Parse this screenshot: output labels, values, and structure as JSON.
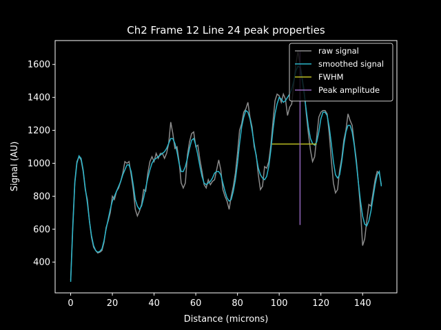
{
  "chart_data": {
    "type": "line",
    "title": "Ch2 Frame 12 Line 24 peak properties",
    "xlabel": "Distance (microns)",
    "ylabel": "Signal (AU)",
    "xlim": [
      -7.45,
      156.45
    ],
    "ylim": [
      213,
      1745
    ],
    "xticks": [
      0,
      20,
      40,
      60,
      80,
      100,
      120,
      140
    ],
    "yticks": [
      400,
      600,
      800,
      1000,
      1200,
      1400,
      1600
    ],
    "legend": "upper right",
    "x": [
      0,
      1,
      2,
      3,
      4,
      5,
      6,
      7,
      8,
      9,
      10,
      11,
      12,
      13,
      14,
      15,
      16,
      17,
      18,
      19,
      20,
      21,
      22,
      23,
      24,
      25,
      26,
      27,
      28,
      29,
      30,
      31,
      32,
      33,
      34,
      35,
      36,
      37,
      38,
      39,
      40,
      41,
      42,
      43,
      44,
      45,
      46,
      47,
      48,
      49,
      50,
      51,
      52,
      53,
      54,
      55,
      56,
      57,
      58,
      59,
      60,
      61,
      62,
      63,
      64,
      65,
      66,
      67,
      68,
      69,
      70,
      71,
      72,
      73,
      74,
      75,
      76,
      77,
      78,
      79,
      80,
      81,
      82,
      83,
      84,
      85,
      86,
      87,
      88,
      89,
      90,
      91,
      92,
      93,
      94,
      95,
      96,
      97,
      98,
      99,
      100,
      101,
      102,
      103,
      104,
      105,
      106,
      107,
      108,
      109,
      110,
      111,
      112,
      113,
      114,
      115,
      116,
      117,
      118,
      119,
      120,
      121,
      122,
      123,
      124,
      125,
      126,
      127,
      128,
      129,
      130,
      131,
      132,
      133,
      134,
      135,
      136,
      137,
      138,
      139,
      140,
      141,
      142,
      143,
      144,
      145,
      146,
      147,
      148,
      149
    ],
    "series": [
      {
        "name": "raw signal",
        "color": "#8c8c8c",
        "values": [
          290,
          620,
          890,
          1010,
          1040,
          1020,
          950,
          840,
          780,
          650,
          550,
          490,
          470,
          455,
          460,
          470,
          520,
          610,
          650,
          700,
          800,
          780,
          830,
          850,
          890,
          940,
          1010,
          1000,
          1010,
          930,
          840,
          720,
          680,
          710,
          750,
          840,
          830,
          940,
          1010,
          1040,
          1010,
          1060,
          1030,
          1060,
          1060,
          1030,
          1060,
          1120,
          1250,
          1180,
          1090,
          1100,
          1010,
          880,
          850,
          880,
          1050,
          1130,
          1180,
          1190,
          1100,
          1110,
          1020,
          950,
          870,
          850,
          900,
          870,
          890,
          900,
          960,
          1020,
          960,
          840,
          800,
          770,
          720,
          800,
          860,
          940,
          1060,
          1200,
          1240,
          1310,
          1330,
          1370,
          1280,
          1220,
          1100,
          1050,
          930,
          840,
          860,
          980,
          970,
          1010,
          1110,
          1250,
          1380,
          1420,
          1410,
          1370,
          1420,
          1390,
          1290,
          1340,
          1360,
          1480,
          1600,
          1680,
          1600,
          1520,
          1440,
          1300,
          1180,
          1080,
          1010,
          1040,
          1160,
          1280,
          1310,
          1320,
          1320,
          1300,
          1180,
          1020,
          880,
          820,
          840,
          960,
          1030,
          1140,
          1200,
          1300,
          1260,
          1230,
          1120,
          1020,
          880,
          720,
          500,
          540,
          650,
          750,
          740,
          820,
          900,
          950,
          940,
          870
        ]
      },
      {
        "name": "smoothed signal",
        "color": "#2bb7cc",
        "values": [
          280,
          600,
          880,
          1000,
          1045,
          1030,
          960,
          850,
          760,
          650,
          560,
          500,
          470,
          460,
          465,
          480,
          530,
          600,
          660,
          720,
          770,
          800,
          830,
          860,
          890,
          930,
          960,
          990,
          990,
          950,
          870,
          780,
          740,
          720,
          740,
          790,
          850,
          910,
          960,
          1000,
          1020,
          1030,
          1040,
          1050,
          1060,
          1070,
          1090,
          1120,
          1150,
          1150,
          1120,
          1070,
          1000,
          950,
          950,
          980,
          1030,
          1090,
          1140,
          1150,
          1110,
          1050,
          980,
          920,
          880,
          870,
          880,
          890,
          910,
          940,
          950,
          950,
          930,
          880,
          830,
          790,
          770,
          780,
          830,
          900,
          1000,
          1120,
          1220,
          1280,
          1320,
          1310,
          1270,
          1200,
          1120,
          1040,
          970,
          930,
          910,
          900,
          920,
          980,
          1080,
          1200,
          1300,
          1360,
          1400,
          1390,
          1370,
          1380,
          1400,
          1420,
          1450,
          1500,
          1560,
          1590,
          1580,
          1510,
          1420,
          1320,
          1220,
          1150,
          1120,
          1110,
          1130,
          1190,
          1270,
          1310,
          1310,
          1290,
          1220,
          1120,
          1010,
          930,
          910,
          930,
          1010,
          1110,
          1190,
          1230,
          1230,
          1190,
          1110,
          1000,
          880,
          770,
          680,
          630,
          620,
          650,
          710,
          790,
          870,
          930,
          950,
          860
        ]
      },
      {
        "name": "FWHM",
        "color": "#bcbd22",
        "x": [
          96.5,
          118
        ],
        "values": [
          1117,
          1117
        ]
      },
      {
        "name": "Peak amplitude",
        "color": "#9467bd",
        "x": [
          110,
          110
        ],
        "values": [
          625,
          1680
        ]
      }
    ]
  }
}
